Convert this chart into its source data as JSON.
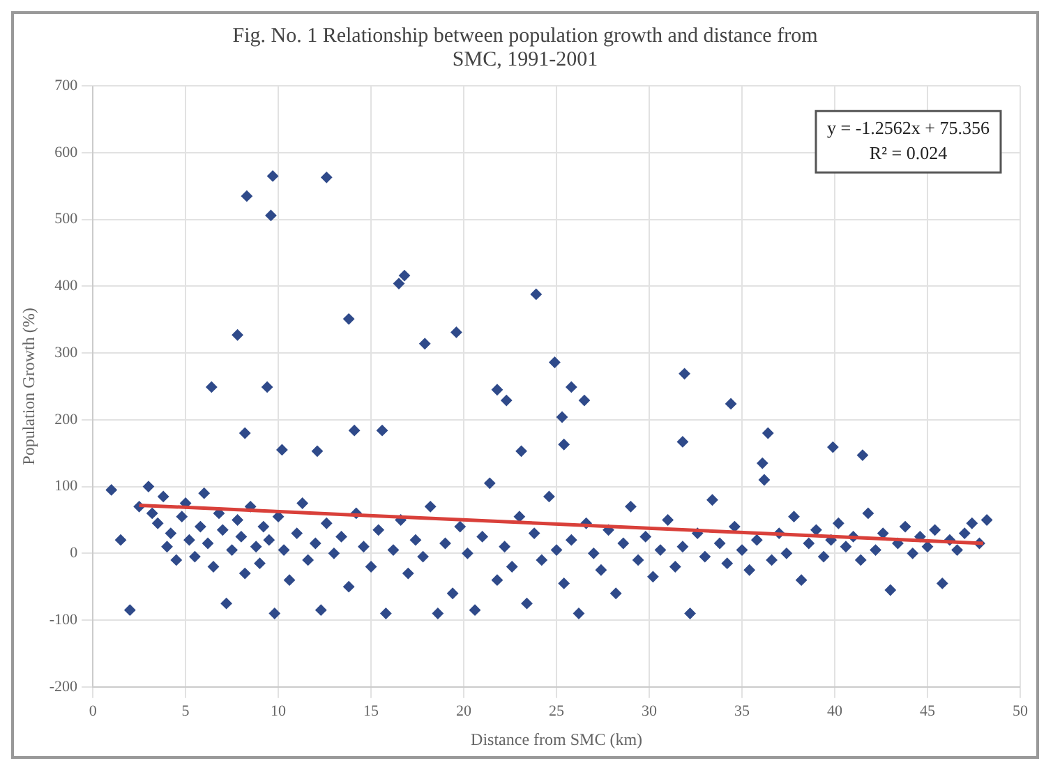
{
  "chart_data": {
    "type": "scatter",
    "title": "Fig. No. 1 Relationship between population growth and distance from SMC, 1991-2001",
    "xlabel": "Distance from SMC (km)",
    "ylabel": "Population Growth (%)",
    "xlim": [
      0,
      50
    ],
    "xticks": [
      0,
      5,
      10,
      15,
      20,
      25,
      30,
      35,
      40,
      45,
      50
    ],
    "ylim": [
      -200,
      700
    ],
    "yticks": [
      -200,
      -100,
      0,
      100,
      200,
      300,
      400,
      500,
      600,
      700
    ],
    "grid": true,
    "legend": false,
    "annotations": [
      "y = -1.2562x + 75.356",
      "R² = 0.024"
    ],
    "series": [
      {
        "color": "#2f4a8a",
        "marker": "diamond",
        "x": [
          1.0,
          1.5,
          2.0,
          2.5,
          3.0,
          3.2,
          3.5,
          3.8,
          4.0,
          4.2,
          4.5,
          4.8,
          5.0,
          5.2,
          5.5,
          5.8,
          6.0,
          6.2,
          6.5,
          6.8,
          7.0,
          7.2,
          7.5,
          7.8,
          8.0,
          8.2,
          8.5,
          8.8,
          9.0,
          9.2,
          9.5,
          9.8,
          10.0,
          10.3,
          10.6,
          11.0,
          11.3,
          11.6,
          12.0,
          12.3,
          12.6,
          13.0,
          13.4,
          13.8,
          14.2,
          14.6,
          15.0,
          15.4,
          15.8,
          16.2,
          16.6,
          17.0,
          17.4,
          17.8,
          18.2,
          18.6,
          19.0,
          19.4,
          19.8,
          20.2,
          20.6,
          21.0,
          21.4,
          21.8,
          22.2,
          22.6,
          23.0,
          23.4,
          23.8,
          24.2,
          24.6,
          25.0,
          25.4,
          25.8,
          26.2,
          26.6,
          27.0,
          27.4,
          27.8,
          28.2,
          28.6,
          29.0,
          29.4,
          29.8,
          30.2,
          30.6,
          31.0,
          31.4,
          31.8,
          32.2,
          32.6,
          33.0,
          33.4,
          33.8,
          34.2,
          34.6,
          35.0,
          35.4,
          35.8,
          36.2,
          36.6,
          37.0,
          37.4,
          37.8,
          38.2,
          38.6,
          39.0,
          39.4,
          39.8,
          40.2,
          40.6,
          41.0,
          41.4,
          41.8,
          42.2,
          42.6,
          43.0,
          43.4,
          43.8,
          44.2,
          44.6,
          45.0,
          45.4,
          45.8,
          46.2,
          46.6,
          47.0,
          47.4,
          47.8,
          48.2,
          8.3,
          9.7,
          9.6,
          12.6,
          7.8,
          6.4,
          9.4,
          8.2,
          10.2,
          13.8,
          16.5,
          16.8,
          15.6,
          14.1,
          17.9,
          19.6,
          21.8,
          22.3,
          23.9,
          24.9,
          25.8,
          26.5,
          25.3,
          25.4,
          23.1,
          31.9,
          31.8,
          34.4,
          36.4,
          39.9,
          41.5,
          36.1,
          12.1
        ],
        "values": [
          95,
          20,
          -85,
          70,
          100,
          60,
          45,
          85,
          10,
          30,
          -10,
          55,
          75,
          20,
          -5,
          40,
          90,
          15,
          -20,
          60,
          35,
          -75,
          5,
          50,
          25,
          -30,
          70,
          10,
          -15,
          40,
          20,
          -90,
          55,
          5,
          -40,
          30,
          75,
          -10,
          15,
          -85,
          45,
          0,
          25,
          -50,
          60,
          10,
          -20,
          35,
          -90,
          5,
          50,
          -30,
          20,
          -5,
          70,
          -90,
          15,
          -60,
          40,
          0,
          -85,
          25,
          105,
          -40,
          10,
          -20,
          55,
          -75,
          30,
          -10,
          85,
          5,
          -45,
          20,
          -90,
          45,
          0,
          -25,
          35,
          -60,
          15,
          70,
          -10,
          25,
          -35,
          5,
          50,
          -20,
          10,
          -90,
          30,
          -5,
          80,
          15,
          -15,
          40,
          5,
          -25,
          20,
          110,
          -10,
          30,
          0,
          55,
          -40,
          15,
          35,
          -5,
          20,
          45,
          10,
          25,
          -10,
          60,
          5,
          30,
          -55,
          15,
          40,
          0,
          25,
          10,
          35,
          -45,
          20,
          5,
          30,
          45,
          15,
          50,
          535,
          565,
          506,
          563,
          327,
          249,
          249,
          180,
          155,
          351,
          404,
          416,
          184,
          184,
          314,
          331,
          245,
          229,
          388,
          286,
          249,
          229,
          204,
          163,
          153,
          269,
          167,
          224,
          180,
          159,
          147,
          135,
          153
        ]
      },
      {
        "type": "line",
        "marker": "none",
        "color": "#d9403a",
        "x": [
          2.5,
          48
        ],
        "values": [
          72,
          15
        ]
      }
    ]
  }
}
